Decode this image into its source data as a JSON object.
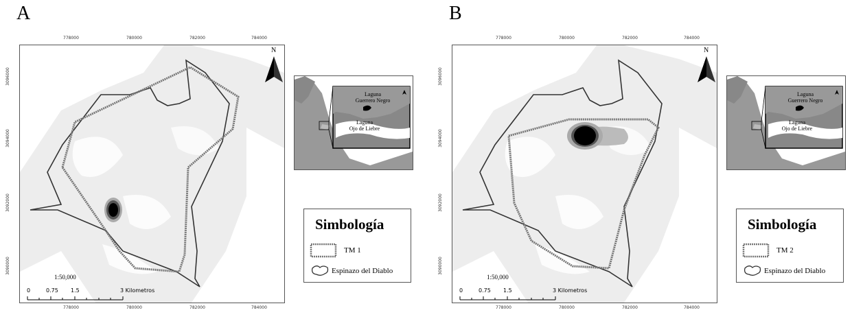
{
  "panels": [
    {
      "letter": "A",
      "x_ticks": [
        "778000",
        "780000",
        "782000",
        "784000"
      ],
      "y_ticks": [
        "3096000",
        "3094000",
        "3092000",
        "3090000"
      ],
      "legend_title": "Simbología",
      "legend_items": [
        "TM 1",
        "Espinazo del Diablo"
      ],
      "scale_ratio": "1:50,000",
      "scale_labels": [
        "0",
        "0.75",
        "1.5",
        "3 Kilometros"
      ],
      "north": "N",
      "inset_labels": [
        "Laguna\nGuerrero Negro",
        "Laguna\nOjo de Liebre"
      ]
    },
    {
      "letter": "B",
      "x_ticks": [
        "778000",
        "780000",
        "782000",
        "784000"
      ],
      "y_ticks": [
        "3096000",
        "3094000",
        "3092000",
        "3090000"
      ],
      "legend_title": "Simbología",
      "legend_items": [
        "TM 2",
        "Espinazo del Diablo"
      ],
      "scale_ratio": "1:50,000",
      "scale_labels": [
        "0",
        "0.75",
        "1.5",
        "3 Kilometros"
      ],
      "north": "N",
      "inset_labels": [
        "Laguna\nGuerrero Negro",
        "Laguna\nOjo de Liebre"
      ]
    }
  ],
  "colors": {
    "land": "#ededed",
    "water": "#ffffff",
    "boundary": "#333333",
    "tm_polygon": "#777777",
    "hotspot_core": "#000000",
    "hotspot_mid": "#555555",
    "hotspot_outer": "#aaaaaa"
  }
}
